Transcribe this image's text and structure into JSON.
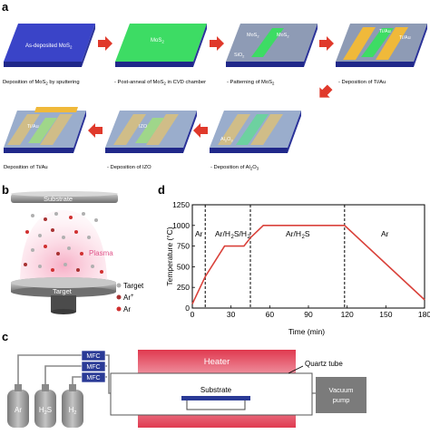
{
  "panel_a": {
    "label": "a",
    "steps": [
      {
        "slab_text": "As-deposited MoS",
        "slab_sub": "2",
        "caption": "Deposition of MoS",
        "caption_sub": "2",
        "caption_tail": " by sputtering"
      },
      {
        "slab_text": "MoS",
        "slab_sub": "2",
        "caption": "- Post-anneal of MoS",
        "caption_sub": "2",
        "caption_tail": " in CVD chamber"
      },
      {
        "slab_labels": [
          "MoS",
          "MoS",
          "SiO"
        ],
        "slab_label_subs": [
          "2",
          "2",
          "2"
        ],
        "caption": "- Patterning of MoS",
        "caption_sub": "2",
        "caption_tail": ""
      },
      {
        "slab_labels": [
          "Ti/Au",
          "Ti/Au"
        ],
        "caption": "- Deposition of Ti/Au",
        "caption_sub": "",
        "caption_tail": ""
      },
      {
        "slab_labels": [
          "Al",
          "O"
        ],
        "slab_label_subs": [
          "2",
          "3"
        ],
        "caption": "- Deposition of Al",
        "caption_sub": "2",
        "caption_mid": "O",
        "caption_sub2": "3"
      },
      {
        "slab_labels": [
          "IZO"
        ],
        "caption": "- Deposition of IZO",
        "caption_sub": "",
        "caption_tail": ""
      },
      {
        "slab_labels": [
          "Ti/Au"
        ],
        "caption": "Deposition of Ti/Au",
        "caption_sub": "",
        "caption_tail": ""
      }
    ],
    "colors": {
      "mos2_blue": "#3a44c8",
      "mos2_green": "#3ddc64",
      "sio2_gray": "#8e9bb5",
      "metal_gold": "#f0b93a",
      "arrow_red": "#e0392b"
    }
  },
  "panel_b": {
    "label": "b",
    "substrate_label": "Substrate",
    "target_label": "Target",
    "plasma_label": "Plasma",
    "legend": [
      {
        "label": "Target",
        "color": "#b0b0b0"
      },
      {
        "label": "Ar",
        "sup": "+",
        "color": "#a83232"
      },
      {
        "label": "Ar",
        "sup": "",
        "color": "#d03030"
      }
    ]
  },
  "panel_d": {
    "label": "d",
    "chart_data": {
      "type": "line",
      "xlabel": "Time (min)",
      "ylabel": "Temperature (°C)",
      "xlim": [
        0,
        180
      ],
      "ylim": [
        0,
        1250
      ],
      "xticks": [
        0,
        30,
        60,
        90,
        120,
        150,
        180
      ],
      "yticks": [
        0,
        250,
        500,
        750,
        1000,
        1250
      ],
      "series": [
        {
          "x": [
            0,
            10,
            25,
            40,
            45,
            55,
            118,
            180
          ],
          "y": [
            50,
            380,
            750,
            750,
            850,
            1000,
            1000,
            100
          ]
        }
      ],
      "regions": [
        {
          "label": "Ar",
          "x_start": 0,
          "x_end": 10
        },
        {
          "label": "Ar/H2S/H2",
          "x_start": 10,
          "x_end": 45
        },
        {
          "label": "Ar/H2S",
          "x_start": 45,
          "x_end": 118
        },
        {
          "label": "Ar",
          "x_start": 118,
          "x_end": 180
        }
      ],
      "line_color": "#d9413a"
    },
    "xtick_labels": [
      "0",
      "30",
      "60",
      "90",
      "120",
      "150",
      "180"
    ],
    "ytick_labels": [
      "0",
      "250",
      "500",
      "750",
      "1000",
      "1250"
    ],
    "region_labels": [
      "Ar",
      "Ar/H",
      "S/H",
      "Ar/H",
      "S",
      "Ar"
    ]
  },
  "panel_c": {
    "label": "c",
    "heater_label": "Heater",
    "quartz_label": "Quartz tube",
    "substrate_label": "Substrate",
    "pump_label": "Vacuum pump",
    "mfc_labels": [
      "MFC",
      "MFC",
      "MFC"
    ],
    "gases": [
      {
        "label": "Ar",
        "sub": ""
      },
      {
        "label": "H",
        "sub": "2",
        "tail": "S"
      },
      {
        "label": "H",
        "sub": "2",
        "tail": ""
      }
    ]
  }
}
